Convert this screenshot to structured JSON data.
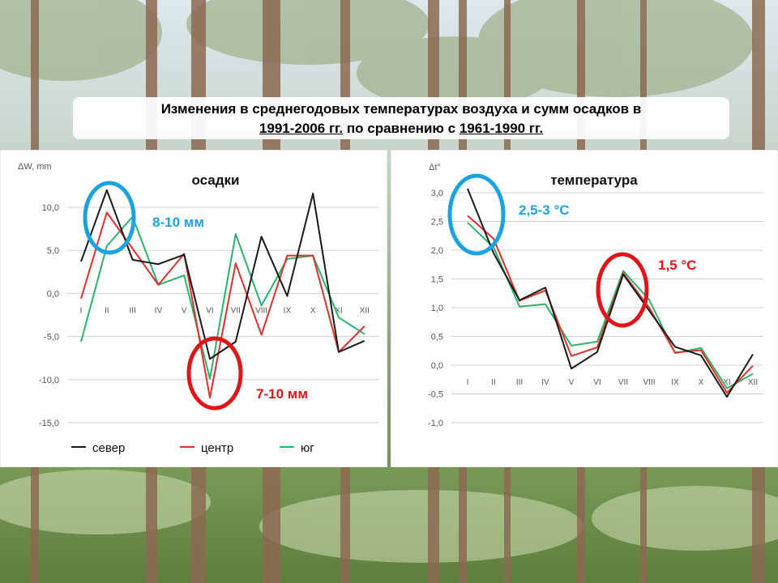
{
  "slide": {
    "title_line1": "Изменения в среднегодовых температурах воздуха и сумм осадков в",
    "title_line2_part1": "1991-2006 гг.",
    "title_line2_part2": " по сравнению с ",
    "title_line2_part3": "1961-1990 гг."
  },
  "colors": {
    "sever": "#1a1a1a",
    "centr": "#e0302a",
    "yug": "#2ab36a",
    "blue_ring": "#1aa3e0",
    "red_ring": "#e0151a"
  },
  "chart_data": [
    {
      "type": "line",
      "title": "осадки",
      "ylabel": "ΔW, mm",
      "ylim": [
        -15,
        15
      ],
      "yticks": [
        "10,0",
        "5,0",
        "0,0",
        "-5,0",
        "-10,0",
        "-15,0"
      ],
      "categories": [
        "I",
        "II",
        "III",
        "IV",
        "V",
        "VI",
        "VII",
        "VIII",
        "IX",
        "X",
        "XI",
        "XII"
      ],
      "series": [
        {
          "name": "север",
          "values": [
            3.7,
            12.0,
            3.9,
            3.4,
            4.5,
            -7.6,
            -5.6,
            6.6,
            -0.3,
            11.6,
            -6.8,
            -5.5
          ]
        },
        {
          "name": "центр",
          "values": [
            -0.6,
            9.4,
            5.2,
            1.0,
            4.6,
            -12.1,
            3.5,
            -4.8,
            4.4,
            4.4,
            -6.8,
            -3.8
          ]
        },
        {
          "name": "юг",
          "values": [
            -5.6,
            5.5,
            8.9,
            1.0,
            2.1,
            -9.9,
            6.9,
            -1.4,
            4.0,
            4.4,
            -2.8,
            -4.7
          ]
        }
      ],
      "annotations": [
        "8-10 мм",
        "7-10 мм"
      ],
      "legend": "bottom",
      "grid": true
    },
    {
      "type": "line",
      "title": "температура",
      "ylabel": "Δt°",
      "ylim": [
        -1.0,
        3.0
      ],
      "yticks": [
        "3,0",
        "2,5",
        "2,0",
        "1,5",
        "1,0",
        "0,5",
        "0,0",
        "-0,5",
        "-1,0"
      ],
      "categories": [
        "I",
        "II",
        "III",
        "IV",
        "V",
        "VI",
        "VII",
        "VIII",
        "IX",
        "X",
        "XI",
        "XII"
      ],
      "series": [
        {
          "name": "север",
          "values": [
            3.07,
            1.95,
            1.13,
            1.35,
            -0.06,
            0.23,
            1.58,
            0.95,
            0.32,
            0.17,
            -0.55,
            0.19
          ]
        },
        {
          "name": "центр",
          "values": [
            2.6,
            2.2,
            1.12,
            1.3,
            0.16,
            0.31,
            1.6,
            1.0,
            0.22,
            0.26,
            -0.48,
            -0.01
          ]
        },
        {
          "name": "юг",
          "values": [
            2.48,
            2.05,
            1.02,
            1.06,
            0.34,
            0.41,
            1.64,
            1.14,
            0.21,
            0.3,
            -0.4,
            -0.15
          ]
        }
      ],
      "annotations": [
        "2,5-3 °C",
        "1,5 °C"
      ],
      "legend": "none",
      "grid": true
    }
  ]
}
